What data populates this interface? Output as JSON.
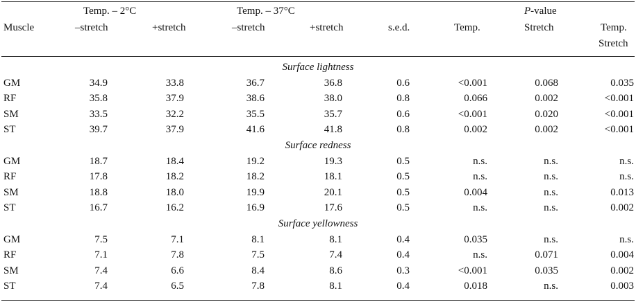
{
  "header": {
    "muscle": "Muscle",
    "temp2": "Temp. – 2°C",
    "temp37": "Temp. – 37°C",
    "minus_stretch": "–stretch",
    "plus_stretch": "+stretch",
    "sed": "s.e.d.",
    "p_italic": "P",
    "p_rest": "-value",
    "p_temp": "Temp.",
    "p_stretch": "Stretch",
    "p_temp_stretch_1": "Temp.",
    "p_temp_stretch_2": "Stretch"
  },
  "sections": [
    {
      "title": "Surface lightness",
      "rows": [
        [
          "GM",
          "34.9",
          "33.8",
          "36.7",
          "36.8",
          "0.6",
          "<0.001",
          "0.068",
          "0.035"
        ],
        [
          "RF",
          "35.8",
          "37.9",
          "38.6",
          "38.0",
          "0.8",
          "0.066",
          "0.002",
          "<0.001"
        ],
        [
          "SM",
          "33.5",
          "32.2",
          "35.5",
          "35.7",
          "0.6",
          "<0.001",
          "0.020",
          "<0.001"
        ],
        [
          "ST",
          "39.7",
          "37.9",
          "41.6",
          "41.8",
          "0.8",
          "0.002",
          "0.002",
          "<0.001"
        ]
      ]
    },
    {
      "title": "Surface redness",
      "rows": [
        [
          "GM",
          "18.7",
          "18.4",
          "19.2",
          "19.3",
          "0.5",
          "n.s.",
          "n.s.",
          "n.s."
        ],
        [
          "RF",
          "17.8",
          "18.2",
          "18.2",
          "18.1",
          "0.5",
          "n.s.",
          "n.s.",
          "n.s."
        ],
        [
          "SM",
          "18.8",
          "18.0",
          "19.9",
          "20.1",
          "0.5",
          "0.004",
          "n.s.",
          "0.013"
        ],
        [
          "ST",
          "16.7",
          "16.2",
          "16.9",
          "17.6",
          "0.5",
          "n.s.",
          "n.s.",
          "0.002"
        ]
      ]
    },
    {
      "title": "Surface yellowness",
      "rows": [
        [
          "GM",
          "7.5",
          "7.1",
          "8.1",
          "8.1",
          "0.4",
          "0.035",
          "n.s.",
          "n.s."
        ],
        [
          "RF",
          "7.1",
          "7.8",
          "7.5",
          "7.4",
          "0.4",
          "n.s.",
          "0.071",
          "0.004"
        ],
        [
          "SM",
          "7.4",
          "6.6",
          "8.4",
          "8.6",
          "0.3",
          "<0.001",
          "0.035",
          "0.002"
        ],
        [
          "ST",
          "7.4",
          "6.5",
          "7.8",
          "8.1",
          "0.4",
          "0.018",
          "n.s.",
          "0.003"
        ]
      ]
    }
  ]
}
